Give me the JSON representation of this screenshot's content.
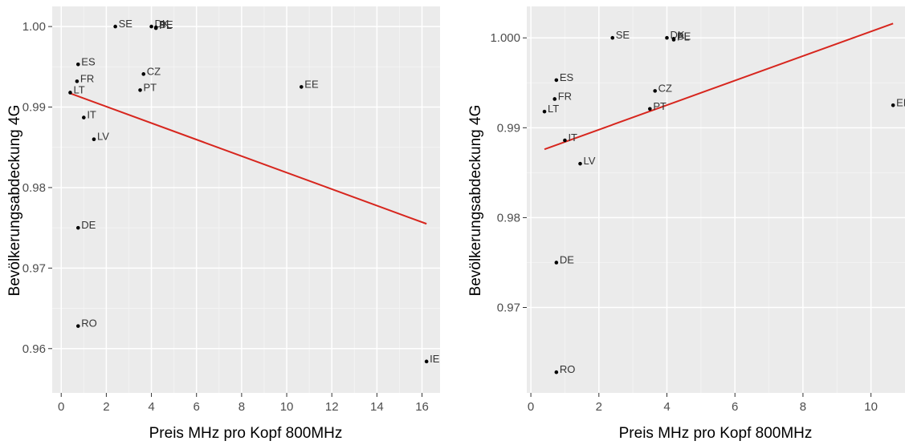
{
  "colors": {
    "panel_bg": "#ebebeb",
    "grid_major": "#ffffff",
    "grid_minor": "#f5f5f5",
    "point": "#000000",
    "regression_line": "#d7261e",
    "tick_text": "#4d4d4d",
    "title_text": "#000000"
  },
  "chart_data": [
    {
      "type": "scatter",
      "title": "",
      "xlabel": "Preis MHz pro Kopf 800MHz",
      "ylabel": "Bevölkerungsabdeckung 4G",
      "xlim": [
        -0.4,
        16.8
      ],
      "ylim": [
        0.9545,
        1.0025
      ],
      "grid": true,
      "x_ticks": [
        0,
        2,
        4,
        6,
        8,
        10,
        12,
        14,
        16
      ],
      "y_ticks": [
        0.96,
        0.97,
        0.98,
        0.99,
        1.0
      ],
      "x_tick_labels": [
        "0",
        "2",
        "4",
        "6",
        "8",
        "10",
        "12",
        "14",
        "16"
      ],
      "y_tick_labels": [
        "0.96",
        "0.97",
        "0.98",
        "0.99",
        "1.00"
      ],
      "points": [
        {
          "label": "SE",
          "x": 2.4,
          "y": 1.0
        },
        {
          "label": "DK",
          "x": 4.0,
          "y": 1.0
        },
        {
          "label": "PL",
          "x": 4.2,
          "y": 0.9998
        },
        {
          "label": "BE",
          "x": 4.2,
          "y": 0.9999
        },
        {
          "label": "ES",
          "x": 0.75,
          "y": 0.9953
        },
        {
          "label": "FR",
          "x": 0.7,
          "y": 0.9932
        },
        {
          "label": "LT",
          "x": 0.4,
          "y": 0.9918
        },
        {
          "label": "CZ",
          "x": 3.65,
          "y": 0.9941
        },
        {
          "label": "PT",
          "x": 3.5,
          "y": 0.9921
        },
        {
          "label": "IT",
          "x": 1.0,
          "y": 0.9887
        },
        {
          "label": "LV",
          "x": 1.45,
          "y": 0.986
        },
        {
          "label": "EE",
          "x": 10.65,
          "y": 0.9925
        },
        {
          "label": "DE",
          "x": 0.75,
          "y": 0.975
        },
        {
          "label": "RO",
          "x": 0.75,
          "y": 0.9628
        },
        {
          "label": "IE",
          "x": 16.2,
          "y": 0.9584
        }
      ],
      "regression": {
        "x": [
          0.4,
          16.2
        ],
        "y": [
          0.9917,
          0.9755
        ]
      }
    },
    {
      "type": "scatter",
      "title": "",
      "xlabel": "Preis MHz pro Kopf 800MHz",
      "ylabel": "Bevölkerungsabdeckung 4G",
      "xlim": [
        -0.12,
        11.0
      ],
      "ylim": [
        0.9605,
        1.0035
      ],
      "grid": true,
      "x_ticks": [
        0,
        2,
        4,
        6,
        8,
        10
      ],
      "y_ticks": [
        0.97,
        0.98,
        0.99,
        1.0
      ],
      "x_tick_labels": [
        "0",
        "2",
        "4",
        "6",
        "8",
        "10"
      ],
      "y_tick_labels": [
        "0.97",
        "0.98",
        "0.99",
        "1.000"
      ],
      "points": [
        {
          "label": "SE",
          "x": 2.4,
          "y": 1.0
        },
        {
          "label": "DK",
          "x": 4.0,
          "y": 1.0
        },
        {
          "label": "PL",
          "x": 4.2,
          "y": 0.9998
        },
        {
          "label": "BE",
          "x": 4.2,
          "y": 0.9999
        },
        {
          "label": "ES",
          "x": 0.75,
          "y": 0.9953
        },
        {
          "label": "FR",
          "x": 0.7,
          "y": 0.9932
        },
        {
          "label": "LT",
          "x": 0.4,
          "y": 0.9918
        },
        {
          "label": "CZ",
          "x": 3.65,
          "y": 0.9941
        },
        {
          "label": "PT",
          "x": 3.5,
          "y": 0.9921
        },
        {
          "label": "IT",
          "x": 1.0,
          "y": 0.9886
        },
        {
          "label": "LV",
          "x": 1.45,
          "y": 0.986
        },
        {
          "label": "EE",
          "x": 10.65,
          "y": 0.9925
        },
        {
          "label": "DE",
          "x": 0.75,
          "y": 0.975
        },
        {
          "label": "RO",
          "x": 0.75,
          "y": 0.9628
        }
      ],
      "regression": {
        "x": [
          0.4,
          10.65
        ],
        "y": [
          0.9876,
          1.0016
        ]
      }
    }
  ]
}
